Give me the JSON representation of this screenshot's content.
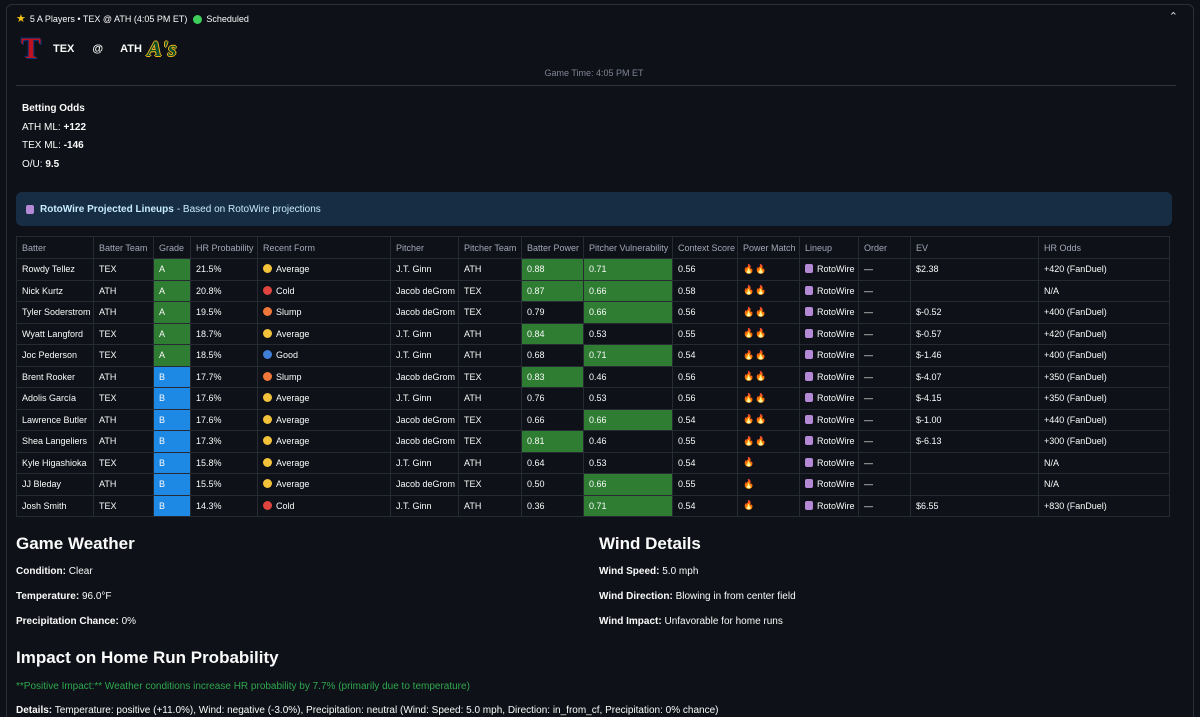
{
  "header": {
    "title": "5 A Players • TEX @ ATH (4:05 PM ET)",
    "status": "Scheduled",
    "collapse_glyph": "⌃"
  },
  "matchup": {
    "away_abbr": "TEX",
    "at": "@",
    "home_abbr": "ATH",
    "away_logo_glyph": "T",
    "home_logo_glyph": "A's",
    "game_time": "Game Time: 4:05 PM ET"
  },
  "odds": {
    "title": "Betting Odds",
    "lines": [
      {
        "label": "ATH ML:",
        "value": "+122"
      },
      {
        "label": "TEX ML:",
        "value": "-146"
      },
      {
        "label": "O/U:",
        "value": "9.5"
      }
    ]
  },
  "info": {
    "icon": "rotowire-icon",
    "bold": "RotoWire Projected Lineups",
    "rest": "- Based on RotoWire projections"
  },
  "table": {
    "columns": [
      "Batter",
      "Batter Team",
      "Grade",
      "HR Probability",
      "Recent Form",
      "Pitcher",
      "Pitcher Team",
      "Batter Power",
      "Pitcher Vulnerability",
      "Context Score",
      "Power Match",
      "Lineup",
      "Order",
      "EV",
      "HR Odds"
    ],
    "form_colors": {
      "Average": "#f2c23a",
      "Cold": "#e0443e",
      "Slump": "#f0773a",
      "Good": "#3f7fd8"
    },
    "highlight_color": "#2e7d32",
    "grade_colors": {
      "A": "#2e7d32",
      "B": "#1e88e5"
    },
    "rows": [
      {
        "batter": "Rowdy Tellez",
        "team": "TEX",
        "grade": "A",
        "hr": "21.5%",
        "form": "Average",
        "pitcher": "J.T. Ginn",
        "pteam": "ATH",
        "power": "0.88",
        "power_hi": true,
        "vuln": "0.71",
        "vuln_hi": true,
        "context": "0.56",
        "match": "🔥🔥",
        "lineup": "RotoWire",
        "order": "—",
        "ev": "$2.38",
        "odds": "+420 (FanDuel)"
      },
      {
        "batter": "Nick Kurtz",
        "team": "ATH",
        "grade": "A",
        "hr": "20.8%",
        "form": "Cold",
        "pitcher": "Jacob deGrom",
        "pteam": "TEX",
        "power": "0.87",
        "power_hi": true,
        "vuln": "0.66",
        "vuln_hi": true,
        "context": "0.58",
        "match": "🔥🔥",
        "lineup": "RotoWire",
        "order": "—",
        "ev": "",
        "odds": "N/A"
      },
      {
        "batter": "Tyler Soderstrom",
        "team": "ATH",
        "grade": "A",
        "hr": "19.5%",
        "form": "Slump",
        "pitcher": "Jacob deGrom",
        "pteam": "TEX",
        "power": "0.79",
        "power_hi": false,
        "vuln": "0.66",
        "vuln_hi": true,
        "context": "0.56",
        "match": "🔥🔥",
        "lineup": "RotoWire",
        "order": "—",
        "ev": "$-0.52",
        "odds": "+400 (FanDuel)"
      },
      {
        "batter": "Wyatt Langford",
        "team": "TEX",
        "grade": "A",
        "hr": "18.7%",
        "form": "Average",
        "pitcher": "J.T. Ginn",
        "pteam": "ATH",
        "power": "0.84",
        "power_hi": true,
        "vuln": "0.53",
        "vuln_hi": false,
        "context": "0.55",
        "match": "🔥🔥",
        "lineup": "RotoWire",
        "order": "—",
        "ev": "$-0.57",
        "odds": "+420 (FanDuel)"
      },
      {
        "batter": "Joc Pederson",
        "team": "TEX",
        "grade": "A",
        "hr": "18.5%",
        "form": "Good",
        "pitcher": "J.T. Ginn",
        "pteam": "ATH",
        "power": "0.68",
        "power_hi": false,
        "vuln": "0.71",
        "vuln_hi": true,
        "context": "0.54",
        "match": "🔥🔥",
        "lineup": "RotoWire",
        "order": "—",
        "ev": "$-1.46",
        "odds": "+400 (FanDuel)"
      },
      {
        "batter": "Brent Rooker",
        "team": "ATH",
        "grade": "B",
        "hr": "17.7%",
        "form": "Slump",
        "pitcher": "Jacob deGrom",
        "pteam": "TEX",
        "power": "0.83",
        "power_hi": true,
        "vuln": "0.46",
        "vuln_hi": false,
        "context": "0.56",
        "match": "🔥🔥",
        "lineup": "RotoWire",
        "order": "—",
        "ev": "$-4.07",
        "odds": "+350 (FanDuel)"
      },
      {
        "batter": "Adolis García",
        "team": "TEX",
        "grade": "B",
        "hr": "17.6%",
        "form": "Average",
        "pitcher": "J.T. Ginn",
        "pteam": "ATH",
        "power": "0.76",
        "power_hi": false,
        "vuln": "0.53",
        "vuln_hi": false,
        "context": "0.56",
        "match": "🔥🔥",
        "lineup": "RotoWire",
        "order": "—",
        "ev": "$-4.15",
        "odds": "+350 (FanDuel)"
      },
      {
        "batter": "Lawrence Butler",
        "team": "ATH",
        "grade": "B",
        "hr": "17.6%",
        "form": "Average",
        "pitcher": "Jacob deGrom",
        "pteam": "TEX",
        "power": "0.66",
        "power_hi": false,
        "vuln": "0.66",
        "vuln_hi": true,
        "context": "0.54",
        "match": "🔥🔥",
        "lineup": "RotoWire",
        "order": "—",
        "ev": "$-1.00",
        "odds": "+440 (FanDuel)"
      },
      {
        "batter": "Shea Langeliers",
        "team": "ATH",
        "grade": "B",
        "hr": "17.3%",
        "form": "Average",
        "pitcher": "Jacob deGrom",
        "pteam": "TEX",
        "power": "0.81",
        "power_hi": true,
        "vuln": "0.46",
        "vuln_hi": false,
        "context": "0.55",
        "match": "🔥🔥",
        "lineup": "RotoWire",
        "order": "—",
        "ev": "$-6.13",
        "odds": "+300 (FanDuel)"
      },
      {
        "batter": "Kyle Higashioka",
        "team": "TEX",
        "grade": "B",
        "hr": "15.8%",
        "form": "Average",
        "pitcher": "J.T. Ginn",
        "pteam": "ATH",
        "power": "0.64",
        "power_hi": false,
        "vuln": "0.53",
        "vuln_hi": false,
        "context": "0.54",
        "match": "🔥",
        "lineup": "RotoWire",
        "order": "—",
        "ev": "",
        "odds": "N/A"
      },
      {
        "batter": "JJ Bleday",
        "team": "ATH",
        "grade": "B",
        "hr": "15.5%",
        "form": "Average",
        "pitcher": "Jacob deGrom",
        "pteam": "TEX",
        "power": "0.50",
        "power_hi": false,
        "vuln": "0.66",
        "vuln_hi": true,
        "context": "0.55",
        "match": "🔥",
        "lineup": "RotoWire",
        "order": "—",
        "ev": "",
        "odds": "N/A"
      },
      {
        "batter": "Josh Smith",
        "team": "TEX",
        "grade": "B",
        "hr": "14.3%",
        "form": "Cold",
        "pitcher": "J.T. Ginn",
        "pteam": "ATH",
        "power": "0.36",
        "power_hi": false,
        "vuln": "0.71",
        "vuln_hi": true,
        "context": "0.54",
        "match": "🔥",
        "lineup": "RotoWire",
        "order": "—",
        "ev": "$6.55",
        "odds": "+830 (FanDuel)"
      }
    ]
  },
  "weather": {
    "title": "Game Weather",
    "condition_label": "Condition:",
    "condition": "Clear",
    "temperature_label": "Temperature:",
    "temperature": "96.0°F",
    "precip_label": "Precipitation Chance:",
    "precip": "0%"
  },
  "wind": {
    "title": "Wind Details",
    "speed_label": "Wind Speed:",
    "speed": "5.0 mph",
    "direction_label": "Wind Direction:",
    "direction": "Blowing in from center field",
    "impact_label": "Wind Impact:",
    "impact": "Unfavorable for home runs"
  },
  "impact": {
    "title": "Impact on Home Run Probability",
    "positive": "**Positive Impact:** Weather conditions increase HR probability by 7.7% (primarily due to temperature)",
    "details_label": "Details:",
    "details": "Temperature: positive (+11.0%), Wind: negative (-3.0%), Precipitation: neutral (Wind: Speed: 5.0 mph, Direction: in_from_cf, Precipitation: 0% chance)"
  }
}
